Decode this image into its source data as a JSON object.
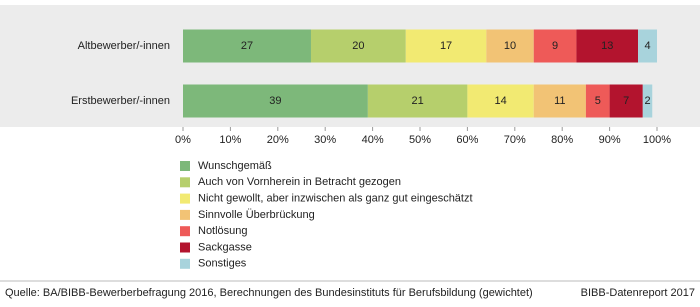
{
  "chart_data": {
    "type": "stacked-bar-horizontal",
    "categories": [
      "Altbewerber/-innen",
      "Erstbewerber/-innen"
    ],
    "series": [
      {
        "name": "Wunschgemäß",
        "color": "#7db87a",
        "values": [
          27,
          39
        ]
      },
      {
        "name": "Auch von Vornherein in Betracht gezogen",
        "color": "#b6cf6c",
        "values": [
          20,
          21
        ]
      },
      {
        "name": "Nicht gewollt, aber inzwischen als ganz gut eingeschätzt",
        "color": "#f2ea72",
        "values": [
          17,
          14
        ]
      },
      {
        "name": "Sinnvolle Überbrückung",
        "color": "#f2c375",
        "values": [
          10,
          11
        ]
      },
      {
        "name": "Notlösung",
        "color": "#ee5a58",
        "values": [
          9,
          5
        ]
      },
      {
        "name": "Sackgasse",
        "color": "#b3142e",
        "values": [
          13,
          7
        ]
      },
      {
        "name": "Sonstiges",
        "color": "#a8d3dc",
        "values": [
          4,
          2
        ]
      }
    ],
    "xlim": [
      0,
      100
    ],
    "xticks": [
      {
        "value": 0,
        "label": "0%"
      },
      {
        "value": 10,
        "label": "10%"
      },
      {
        "value": 20,
        "label": "20%"
      },
      {
        "value": 30,
        "label": "30%"
      },
      {
        "value": 40,
        "label": "40%"
      },
      {
        "value": 50,
        "label": "50%"
      },
      {
        "value": 60,
        "label": "60%"
      },
      {
        "value": 70,
        "label": "70%"
      },
      {
        "value": 80,
        "label": "80%"
      },
      {
        "value": 90,
        "label": "90%"
      },
      {
        "value": 100,
        "label": "100%"
      }
    ],
    "source": "Quelle: BA/BIBB-Bewerberbefragung 2016, Berechnungen des Bundesinstituts für Berufsbildung (gewichtet)",
    "publisher": "BIBB-Datenreport 2017"
  }
}
